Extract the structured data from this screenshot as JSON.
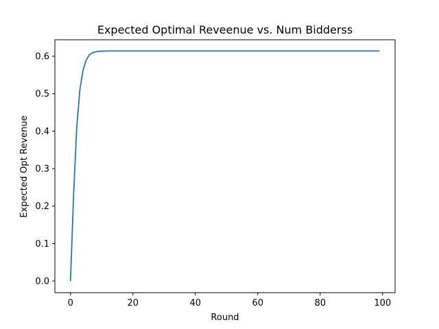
{
  "chart_data": {
    "type": "line",
    "title": "Expected Optimal Reveenue vs. Num Bidderss",
    "xlabel": "Round",
    "ylabel": "Expected Opt Revenue",
    "xlim": [
      -5,
      104
    ],
    "ylim": [
      -0.031,
      0.644
    ],
    "xticks": [
      0,
      20,
      40,
      60,
      80,
      100
    ],
    "yticks": [
      0.0,
      0.1,
      0.2,
      0.3,
      0.4,
      0.5,
      0.6
    ],
    "xtick_labels": [
      "0",
      "20",
      "40",
      "60",
      "80",
      "100"
    ],
    "ytick_labels": [
      "0.0",
      "0.1",
      "0.2",
      "0.3",
      "0.4",
      "0.5",
      "0.6"
    ],
    "grid": false,
    "line_color": "#1f77b4",
    "series": [
      {
        "x": [
          0,
          1,
          2,
          3,
          4,
          5,
          6,
          7,
          8,
          9,
          10,
          12,
          15,
          20,
          30,
          40,
          50,
          60,
          70,
          80,
          90,
          99
        ],
        "y": [
          0.0,
          0.23,
          0.41,
          0.51,
          0.562,
          0.589,
          0.603,
          0.609,
          0.612,
          0.613,
          0.6135,
          0.614,
          0.614,
          0.614,
          0.614,
          0.614,
          0.614,
          0.614,
          0.614,
          0.614,
          0.614,
          0.614
        ]
      }
    ]
  }
}
